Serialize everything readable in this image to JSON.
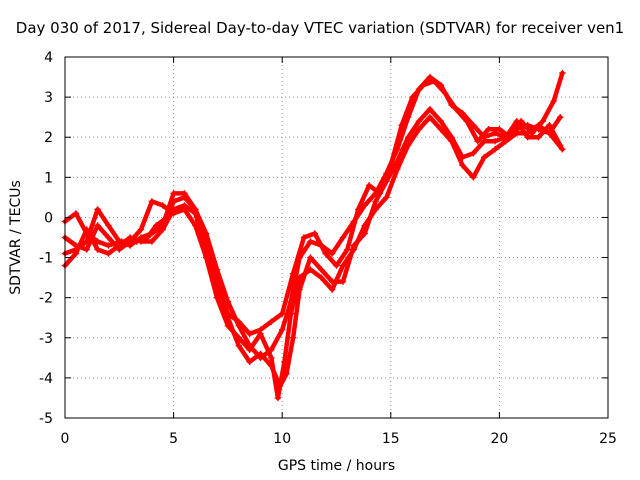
{
  "chart_data": {
    "type": "scatter",
    "title": "Day 030 of 2017, Sidereal Day-to-day VTEC variation (SDTVAR) for receiver ven1",
    "xlabel": "GPS time / hours",
    "ylabel": "SDTVAR / TECUs",
    "xlim": [
      0,
      25
    ],
    "ylim": [
      -5,
      4
    ],
    "xticks": [
      "0",
      "5",
      "10",
      "15",
      "20",
      "25"
    ],
    "yticks": [
      "4",
      "3",
      "2",
      "1",
      "0",
      "-1",
      "-2",
      "-3",
      "-4",
      "-5"
    ],
    "grid": true,
    "marker": "+",
    "color": "#ff0000",
    "series": [
      {
        "points": [
          [
            0,
            -0.1
          ],
          [
            0.5,
            0.1
          ],
          [
            1.0,
            -0.4
          ],
          [
            1.5,
            -0.6
          ],
          [
            2.0,
            -0.7
          ],
          [
            2.6,
            -0.6
          ],
          [
            3.3,
            -0.6
          ],
          [
            3.8,
            -0.5
          ],
          [
            4.2,
            -0.2
          ],
          [
            4.7,
            0.0
          ],
          [
            5.0,
            0.4
          ],
          [
            5.5,
            0.5
          ],
          [
            6.0,
            0.2
          ],
          [
            6.5,
            -0.4
          ],
          [
            7.0,
            -1.3
          ],
          [
            7.5,
            -2.1
          ],
          [
            8.0,
            -2.7
          ],
          [
            8.5,
            -3.2
          ],
          [
            9.0,
            -3.5
          ],
          [
            9.5,
            -3.3
          ],
          [
            10.0,
            -2.8
          ],
          [
            10.4,
            -2.1
          ],
          [
            10.8,
            -1.0
          ],
          [
            11.3,
            -0.6
          ],
          [
            11.8,
            -0.7
          ],
          [
            12.3,
            -0.9
          ],
          [
            12.8,
            -0.5
          ],
          [
            13.3,
            -0.1
          ],
          [
            13.8,
            0.3
          ],
          [
            14.3,
            0.6
          ],
          [
            14.8,
            1.1
          ],
          [
            15.3,
            1.7
          ],
          [
            15.8,
            2.5
          ],
          [
            16.3,
            3.2
          ],
          [
            16.8,
            3.5
          ],
          [
            17.3,
            3.3
          ],
          [
            17.8,
            2.8
          ],
          [
            18.3,
            2.6
          ],
          [
            18.8,
            2.3
          ],
          [
            19.3,
            2.0
          ],
          [
            19.8,
            2.1
          ],
          [
            20.3,
            2.0
          ],
          [
            20.8,
            2.2
          ],
          [
            21.3,
            2.3
          ],
          [
            21.8,
            2.2
          ],
          [
            22.3,
            2.1
          ],
          [
            22.8,
            2.5
          ]
        ]
      },
      {
        "points": [
          [
            0,
            -0.9
          ],
          [
            0.5,
            -0.8
          ],
          [
            1.0,
            -0.6
          ],
          [
            1.5,
            0.2
          ],
          [
            2.0,
            -0.2
          ],
          [
            2.5,
            -0.6
          ],
          [
            3.0,
            -0.7
          ],
          [
            3.5,
            -0.5
          ],
          [
            4.0,
            -0.4
          ],
          [
            4.5,
            -0.2
          ],
          [
            5.0,
            0.6
          ],
          [
            5.5,
            0.6
          ],
          [
            6.0,
            0.2
          ],
          [
            6.5,
            -0.6
          ],
          [
            7.0,
            -1.6
          ],
          [
            7.5,
            -2.4
          ],
          [
            8.0,
            -2.6
          ],
          [
            8.5,
            -2.9
          ],
          [
            9.0,
            -2.8
          ],
          [
            9.5,
            -2.6
          ],
          [
            10.0,
            -2.4
          ],
          [
            10.5,
            -1.4
          ],
          [
            11.0,
            -0.5
          ],
          [
            11.5,
            -0.4
          ],
          [
            12.0,
            -0.9
          ],
          [
            12.5,
            -1.2
          ],
          [
            13.0,
            -0.8
          ],
          [
            13.5,
            0.2
          ],
          [
            14.0,
            0.8
          ],
          [
            14.5,
            0.6
          ],
          [
            15.0,
            1.3
          ],
          [
            15.5,
            2.3
          ],
          [
            16.0,
            3.0
          ],
          [
            16.5,
            3.3
          ],
          [
            17.0,
            3.4
          ],
          [
            17.5,
            3.1
          ],
          [
            18.0,
            2.7
          ],
          [
            18.5,
            2.4
          ],
          [
            19.0,
            1.9
          ],
          [
            19.5,
            2.2
          ],
          [
            20.0,
            2.2
          ],
          [
            20.5,
            2.0
          ],
          [
            21.0,
            2.4
          ],
          [
            21.5,
            2.1
          ],
          [
            22.0,
            2.4
          ],
          [
            22.5,
            2.9
          ],
          [
            22.9,
            3.6
          ]
        ]
      },
      {
        "points": [
          [
            0,
            -1.2
          ],
          [
            0.5,
            -0.9
          ],
          [
            1.0,
            -0.3
          ],
          [
            1.5,
            -0.8
          ],
          [
            2.0,
            -0.9
          ],
          [
            2.5,
            -0.7
          ],
          [
            3.0,
            -0.5
          ],
          [
            3.5,
            -0.6
          ],
          [
            4.0,
            -0.6
          ],
          [
            4.5,
            -0.3
          ],
          [
            5.0,
            0.2
          ],
          [
            5.5,
            0.3
          ],
          [
            6.0,
            0.1
          ],
          [
            6.5,
            -0.8
          ],
          [
            7.0,
            -1.7
          ],
          [
            7.5,
            -2.5
          ],
          [
            8.0,
            -3.2
          ],
          [
            8.5,
            -3.6
          ],
          [
            9.0,
            -3.4
          ],
          [
            9.5,
            -3.7
          ],
          [
            9.9,
            -4.2
          ],
          [
            10.2,
            -3.9
          ],
          [
            10.5,
            -3.0
          ],
          [
            10.8,
            -1.8
          ],
          [
            11.3,
            -1.0
          ],
          [
            11.8,
            -1.3
          ],
          [
            12.3,
            -1.6
          ],
          [
            12.8,
            -1.6
          ],
          [
            13.3,
            -0.7
          ],
          [
            13.8,
            -0.4
          ],
          [
            14.3,
            0.4
          ],
          [
            14.8,
            0.9
          ],
          [
            15.3,
            1.4
          ],
          [
            15.8,
            2.0
          ],
          [
            16.3,
            2.4
          ],
          [
            16.8,
            2.7
          ],
          [
            17.3,
            2.4
          ],
          [
            17.8,
            2.0
          ],
          [
            18.3,
            1.5
          ],
          [
            18.8,
            1.6
          ],
          [
            19.3,
            1.9
          ],
          [
            19.8,
            1.9
          ],
          [
            20.3,
            2.0
          ],
          [
            20.8,
            2.4
          ],
          [
            21.3,
            2.0
          ],
          [
            21.8,
            2.0
          ],
          [
            22.3,
            2.3
          ],
          [
            22.8,
            1.8
          ]
        ]
      },
      {
        "points": [
          [
            0,
            -0.5
          ],
          [
            0.5,
            -0.7
          ],
          [
            1.0,
            -0.8
          ],
          [
            1.5,
            -0.2
          ],
          [
            2.0,
            -0.5
          ],
          [
            2.5,
            -0.8
          ],
          [
            3.0,
            -0.6
          ],
          [
            3.5,
            -0.3
          ],
          [
            4.0,
            0.4
          ],
          [
            4.5,
            0.3
          ],
          [
            5.0,
            0.1
          ],
          [
            5.5,
            0.2
          ],
          [
            6.0,
            -0.2
          ],
          [
            6.5,
            -1.0
          ],
          [
            7.0,
            -2.0
          ],
          [
            7.5,
            -2.7
          ],
          [
            8.0,
            -3.0
          ],
          [
            8.5,
            -3.3
          ],
          [
            9.0,
            -2.9
          ],
          [
            9.5,
            -3.5
          ],
          [
            9.8,
            -4.5
          ],
          [
            10.1,
            -3.6
          ],
          [
            10.4,
            -2.4
          ],
          [
            10.8,
            -1.5
          ],
          [
            11.3,
            -1.3
          ],
          [
            11.8,
            -1.5
          ],
          [
            12.3,
            -1.8
          ],
          [
            12.8,
            -1.2
          ],
          [
            13.3,
            -0.8
          ],
          [
            13.8,
            -0.2
          ],
          [
            14.3,
            0.2
          ],
          [
            14.8,
            0.5
          ],
          [
            15.3,
            1.2
          ],
          [
            15.8,
            1.8
          ],
          [
            16.3,
            2.2
          ],
          [
            16.8,
            2.5
          ],
          [
            17.3,
            2.2
          ],
          [
            17.8,
            1.9
          ],
          [
            18.3,
            1.3
          ],
          [
            18.8,
            1.0
          ],
          [
            19.3,
            1.5
          ],
          [
            19.8,
            1.7
          ],
          [
            20.3,
            1.9
          ],
          [
            20.8,
            2.1
          ],
          [
            21.3,
            2.1
          ],
          [
            21.8,
            2.3
          ],
          [
            22.3,
            2.1
          ],
          [
            22.9,
            1.7
          ]
        ]
      }
    ]
  }
}
